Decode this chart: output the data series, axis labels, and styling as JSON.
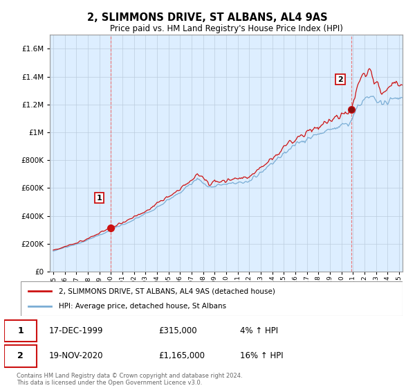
{
  "title": "2, SLIMMONS DRIVE, ST ALBANS, AL4 9AS",
  "subtitle": "Price paid vs. HM Land Registry's House Price Index (HPI)",
  "legend_line1": "2, SLIMMONS DRIVE, ST ALBANS, AL4 9AS (detached house)",
  "legend_line2": "HPI: Average price, detached house, St Albans",
  "sale1_date": "17-DEC-1999",
  "sale1_price": "£315,000",
  "sale1_hpi": "4% ↑ HPI",
  "sale2_date": "19-NOV-2020",
  "sale2_price": "£1,165,000",
  "sale2_hpi": "16% ↑ HPI",
  "footer": "Contains HM Land Registry data © Crown copyright and database right 2024.\nThis data is licensed under the Open Government Licence v3.0.",
  "hpi_color": "#7aadd4",
  "price_color": "#cc1111",
  "marker_color": "#cc1111",
  "vline_color": "#ee6666",
  "chart_bg": "#ddeeff",
  "ylim": [
    0,
    1700000
  ],
  "yticks": [
    0,
    200000,
    400000,
    600000,
    800000,
    1000000,
    1200000,
    1400000,
    1600000
  ],
  "xlim_start": 1994.7,
  "xlim_end": 2025.3,
  "background_color": "#ffffff",
  "grid_color": "#bbccdd"
}
